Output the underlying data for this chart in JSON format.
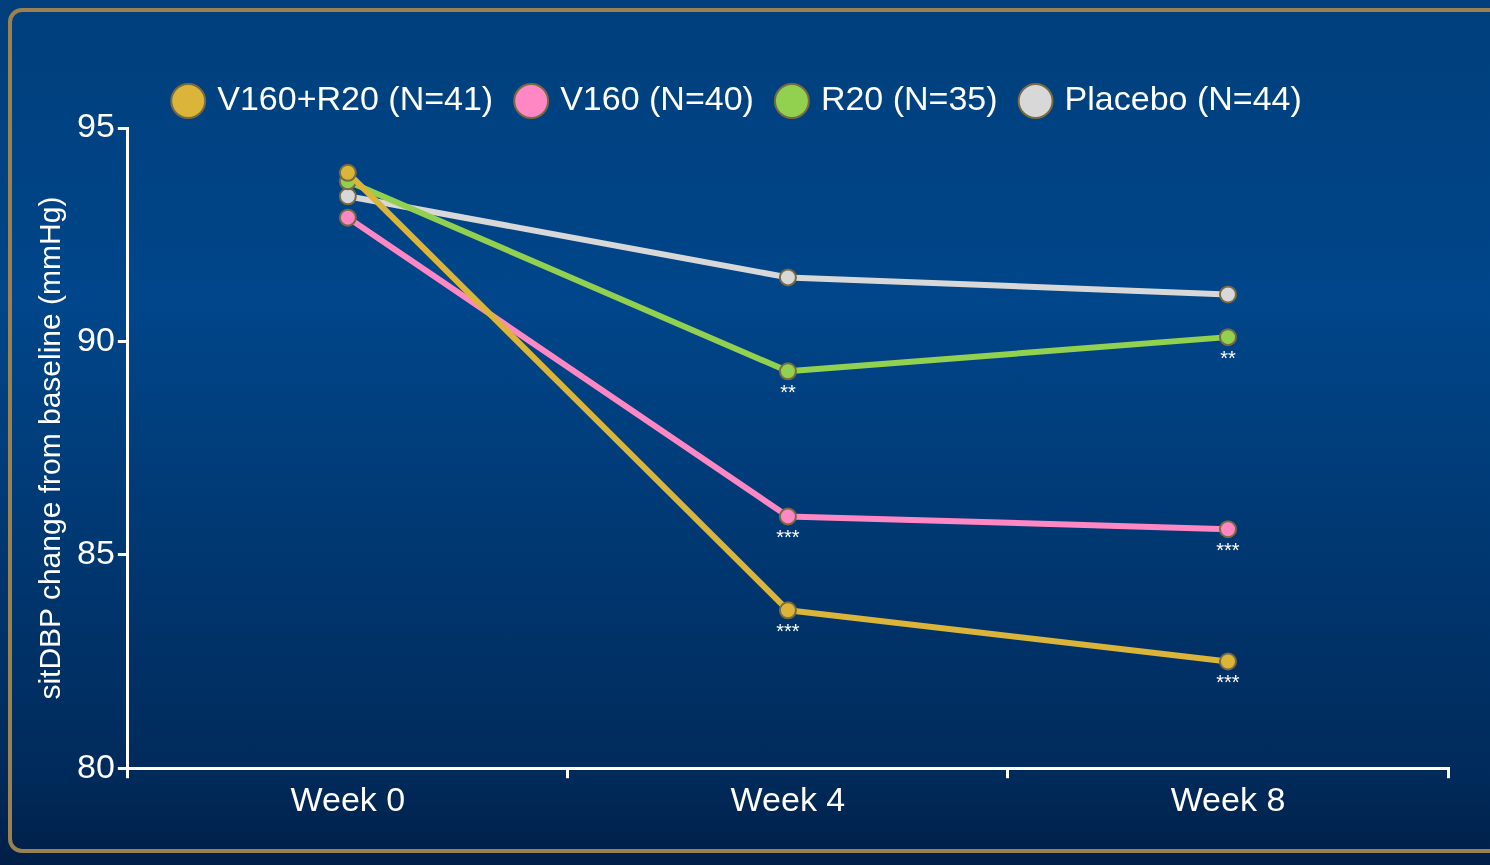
{
  "chart_data": {
    "type": "line",
    "ylabel": "sitDBP change from baseline (mmHg)",
    "categories": [
      "Week 0",
      "Week 4",
      "Week 8"
    ],
    "series": [
      {
        "name": "V160+R20 (N=41)",
        "color": "#dbb43a",
        "values": [
          93.95,
          83.7,
          82.5
        ]
      },
      {
        "name": "V160 (N=40)",
        "color": "#ff88c4",
        "values": [
          92.9,
          85.9,
          85.6
        ]
      },
      {
        "name": "R20 (N=35)",
        "color": "#92d050",
        "values": [
          93.75,
          89.3,
          90.1
        ]
      },
      {
        "name": "Placebo (N=44)",
        "color": "#d8d8d8",
        "values": [
          93.4,
          91.5,
          91.1
        ]
      }
    ],
    "ylim": [
      80,
      95
    ],
    "yticks": [
      80,
      85,
      90,
      95
    ],
    "grid": false,
    "legend": "top",
    "marker": "circle",
    "line_style": "solid",
    "annotations": [
      {
        "text": "**",
        "x": "Week 4",
        "y": 89.3
      },
      {
        "text": "**",
        "x": "Week 8",
        "y": 90.1
      },
      {
        "text": "***",
        "x": "Week 4",
        "y": 85.9
      },
      {
        "text": "***",
        "x": "Week 8",
        "y": 85.6
      },
      {
        "text": "***",
        "x": "Week 4",
        "y": 83.7
      },
      {
        "text": "***",
        "x": "Week 8",
        "y": 82.5
      }
    ]
  }
}
